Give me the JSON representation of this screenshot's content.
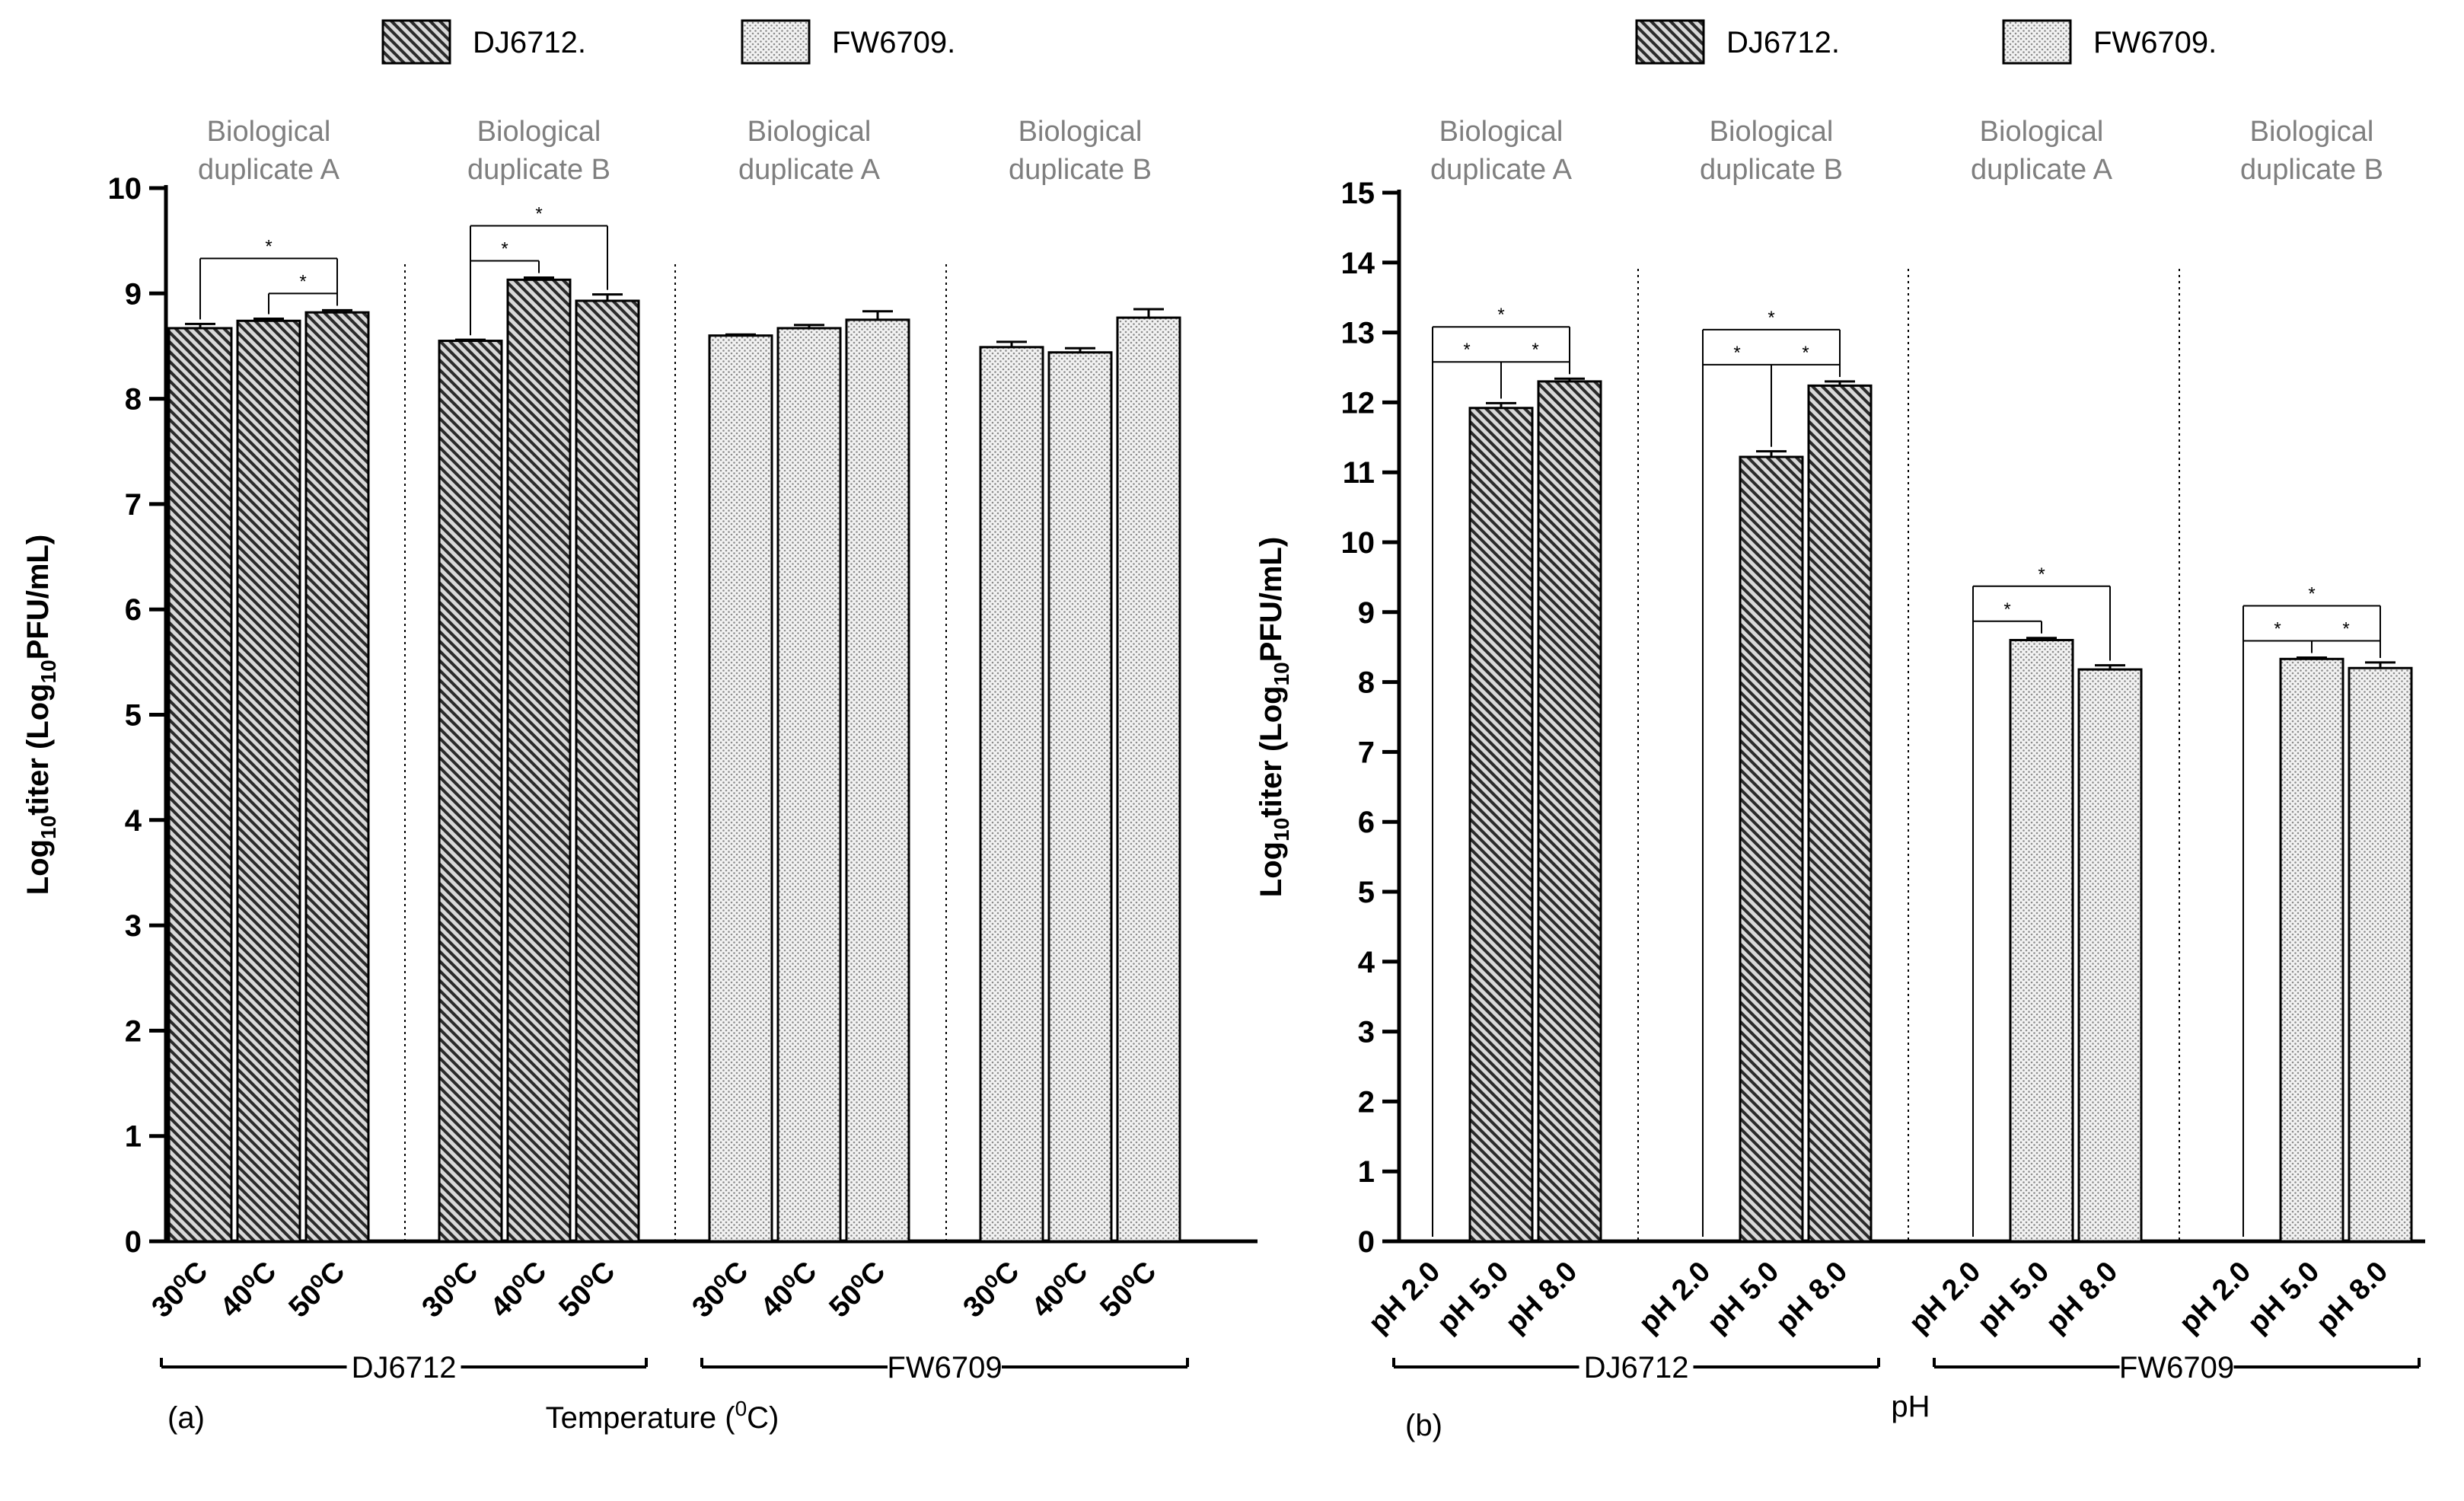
{
  "chart_data": [
    {
      "panel": "(a)",
      "type": "bar",
      "ylabel": "Log10titer (Log10PFU/mL)",
      "ylabel_main": "Log",
      "ylabel_sub": "10",
      "ylabel_mid": "titer (Log",
      "ylabel_sub2": "10",
      "ylabel_end": "PFU/mL)",
      "xlabel": "Temperature (0C)",
      "xlabel_main": "Temperature (",
      "xlabel_sup": "0",
      "xlabel_end": "C)",
      "ylim": [
        0,
        10
      ],
      "yticks": [
        "0",
        "1",
        "2",
        "3",
        "4",
        "5",
        "6",
        "7",
        "8",
        "9",
        "10"
      ],
      "legend": [
        {
          "name": "DJ6712",
          "pattern": "hatch"
        },
        {
          "name": "FW6709",
          "pattern": "dots"
        }
      ],
      "groups": [
        {
          "strain": "DJ6712",
          "duplicate": [
            "Biological",
            "duplicate A"
          ],
          "pattern": "hatch",
          "categories": [
            "30⁰C",
            "40⁰C",
            "50⁰C"
          ],
          "values": [
            8.67,
            8.74,
            8.82
          ],
          "errors": [
            0.04,
            0.02,
            0.02
          ],
          "sig": [
            {
              "from": 0,
              "to": 2,
              "level": 1,
              "label": "*"
            },
            {
              "from": 1,
              "to": 2,
              "level": 0,
              "label": "*"
            }
          ]
        },
        {
          "strain": "DJ6712",
          "duplicate": [
            "Biological",
            "duplicate B"
          ],
          "pattern": "hatch",
          "categories": [
            "30⁰C",
            "40⁰C",
            "50⁰C"
          ],
          "values": [
            8.55,
            9.13,
            8.93
          ],
          "errors": [
            0.01,
            0.02,
            0.06
          ],
          "sig": [
            {
              "from": 0,
              "to": 2,
              "level": 1,
              "label": "*"
            },
            {
              "from": 0,
              "to": 1,
              "level": 0,
              "label": "*"
            }
          ]
        },
        {
          "strain": "FW6709",
          "duplicate": [
            "Biological",
            "duplicate A"
          ],
          "pattern": "dots",
          "categories": [
            "30⁰C",
            "40⁰C",
            "50⁰C"
          ],
          "values": [
            8.6,
            8.67,
            8.75
          ],
          "errors": [
            0.01,
            0.03,
            0.08
          ],
          "sig": []
        },
        {
          "strain": "FW6709",
          "duplicate": [
            "Biological",
            "duplicate B"
          ],
          "pattern": "dots",
          "categories": [
            "30⁰C",
            "40⁰C",
            "50⁰C"
          ],
          "values": [
            8.49,
            8.44,
            8.77
          ],
          "errors": [
            0.05,
            0.04,
            0.08
          ],
          "sig": []
        }
      ],
      "strain_labels": [
        "DJ6712",
        "FW6709"
      ]
    },
    {
      "panel": "(b)",
      "type": "bar",
      "ylabel": "Log10titer (Log10PFU/mL)",
      "ylabel_main": "Log",
      "ylabel_sub": "10",
      "ylabel_mid": "titer (Log",
      "ylabel_sub2": "10",
      "ylabel_end": "PFU/mL)",
      "xlabel": "pH",
      "ylim": [
        0,
        15
      ],
      "yticks": [
        "0",
        "1",
        "2",
        "3",
        "4",
        "5",
        "6",
        "7",
        "8",
        "9",
        "10",
        "11",
        "12",
        "13",
        "14",
        "15"
      ],
      "legend": [
        {
          "name": "DJ6712",
          "pattern": "hatch"
        },
        {
          "name": "FW6709",
          "pattern": "dots"
        }
      ],
      "groups": [
        {
          "strain": "DJ6712",
          "duplicate": [
            "Biological",
            "duplicate A"
          ],
          "pattern": "hatch",
          "categories": [
            "pH 2.0",
            "pH 5.0",
            "pH 8.0"
          ],
          "values": [
            0,
            11.92,
            12.3
          ],
          "errors": [
            0,
            0.07,
            0.04
          ],
          "sig": [
            {
              "from": 0,
              "to": 2,
              "level": 1,
              "label": "*"
            },
            {
              "from": 0,
              "to": 1,
              "level": 0,
              "label": "*"
            },
            {
              "from": 1,
              "to": 2,
              "level": 0,
              "label": "*"
            }
          ]
        },
        {
          "strain": "DJ6712",
          "duplicate": [
            "Biological",
            "duplicate B"
          ],
          "pattern": "hatch",
          "categories": [
            "pH 2.0",
            "pH 5.0",
            "pH 8.0"
          ],
          "values": [
            0,
            11.22,
            12.24
          ],
          "errors": [
            0,
            0.08,
            0.06
          ],
          "sig": [
            {
              "from": 0,
              "to": 2,
              "level": 1,
              "label": "*"
            },
            {
              "from": 0,
              "to": 1,
              "level": 0,
              "label": "*"
            },
            {
              "from": 1,
              "to": 2,
              "level": 0,
              "label": "*"
            }
          ]
        },
        {
          "strain": "FW6709",
          "duplicate": [
            "Biological",
            "duplicate A"
          ],
          "pattern": "dots",
          "categories": [
            "pH 2.0",
            "pH 5.0",
            "pH 8.0"
          ],
          "values": [
            0,
            8.6,
            8.18
          ],
          "errors": [
            0,
            0.03,
            0.06
          ],
          "sig": [
            {
              "from": 0,
              "to": 2,
              "level": 1,
              "label": "*"
            },
            {
              "from": 0,
              "to": 1,
              "level": 0,
              "label": "*"
            }
          ]
        },
        {
          "strain": "FW6709",
          "duplicate": [
            "Biological",
            "duplicate B"
          ],
          "pattern": "dots",
          "categories": [
            "pH 2.0",
            "pH 5.0",
            "pH 8.0"
          ],
          "values": [
            0,
            8.33,
            8.2
          ],
          "errors": [
            0,
            0.02,
            0.08
          ],
          "sig": [
            {
              "from": 0,
              "to": 2,
              "level": 1,
              "label": "*"
            },
            {
              "from": 0,
              "to": 1,
              "level": 0,
              "label": "*"
            },
            {
              "from": 1,
              "to": 2,
              "level": 0,
              "label": "*"
            }
          ]
        }
      ],
      "strain_labels": [
        "DJ6712",
        "FW6709"
      ]
    }
  ],
  "colors": {
    "axis": "#000000",
    "bar_outline": "#000000",
    "hatch_bg": "#d9d9d9",
    "hatch_line": "#222222",
    "dots_bg": "#f2f2f2",
    "dots_fg": "#8c8c8c",
    "duplicate_text": "#7f7f7f"
  }
}
